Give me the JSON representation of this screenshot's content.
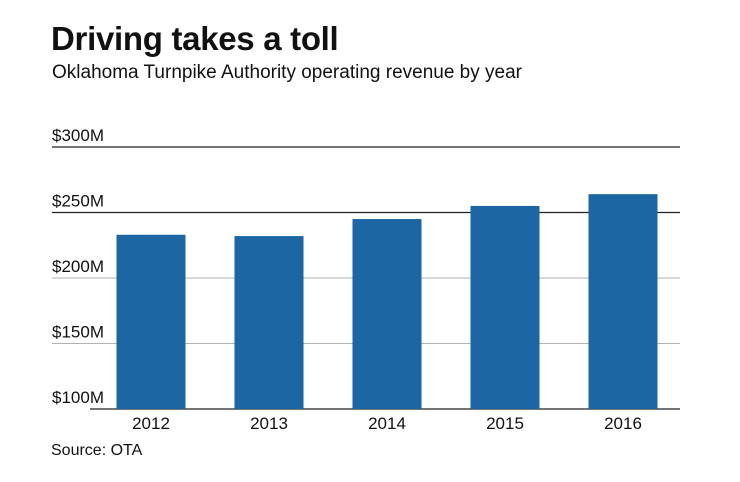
{
  "title": "Driving takes a toll",
  "subtitle": "Oklahoma Turnpike Authority operating revenue by year",
  "source": "Source: OTA",
  "chart_data": {
    "type": "bar",
    "title": "Driving takes a toll",
    "subtitle": "Oklahoma Turnpike Authority operating revenue by year",
    "categories": [
      "2012",
      "2013",
      "2014",
      "2015",
      "2016"
    ],
    "values": [
      233,
      232,
      245,
      255,
      264
    ],
    "unit": "$M",
    "ylim": [
      100,
      300
    ],
    "yticks": [
      100,
      150,
      200,
      250,
      300
    ],
    "ytick_labels": [
      "$100M",
      "$150M",
      "$200M",
      "$250M",
      "$300M"
    ],
    "xlabel": "",
    "ylabel": "",
    "grid": true,
    "bar_color": "#1b66a3",
    "grid_color": "#999999",
    "source": "Source: OTA"
  }
}
